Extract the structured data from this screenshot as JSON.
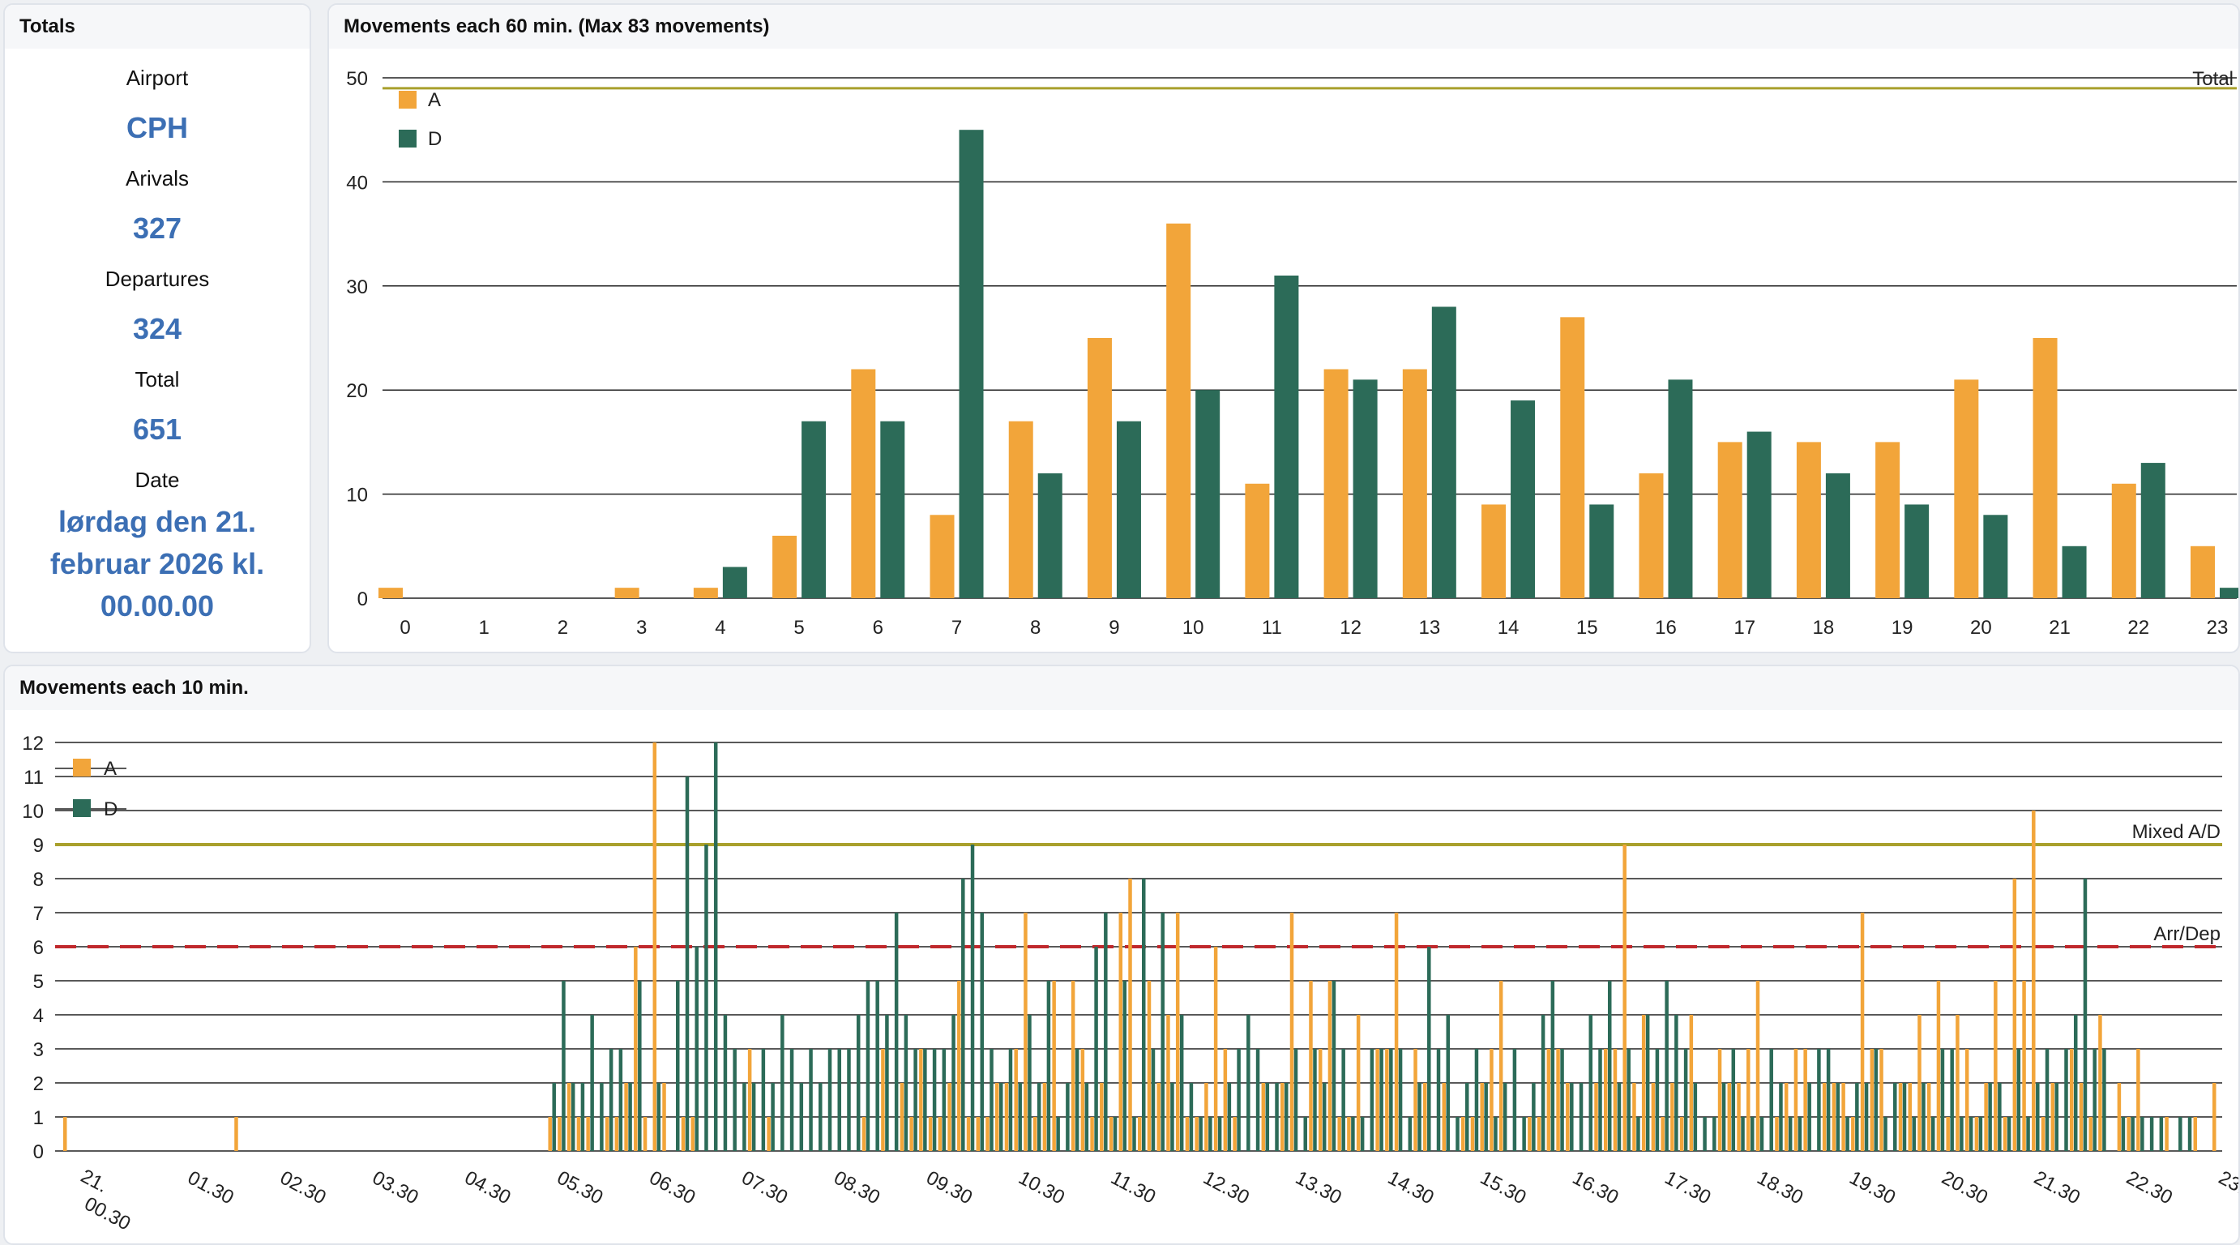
{
  "totals": {
    "title": "Totals",
    "airport_label": "Airport",
    "airport": "CPH",
    "arrivals_label": "Arivals",
    "arrivals": "327",
    "departures_label": "Departures",
    "departures": "324",
    "total_label": "Total",
    "total": "651",
    "date_label": "Date",
    "date": "lørdag den 21. februar 2026 kl. 00.00.00"
  },
  "colors": {
    "arrivals": "#f2a53a",
    "departures": "#2c6b58",
    "limit_line": "#a9a02c",
    "arrdep_line": "#c0282c"
  },
  "hourly": {
    "title": "Movements each 60 min. (Max 83 movements)"
  },
  "tenmin": {
    "title": "Movements each 10 min."
  },
  "chart_data": [
    {
      "type": "bar",
      "title": "Movements each 60 min. (Max 83 movements)",
      "categories": [
        "0",
        "1",
        "2",
        "3",
        "4",
        "5",
        "6",
        "7",
        "8",
        "9",
        "10",
        "11",
        "12",
        "13",
        "14",
        "15",
        "16",
        "17",
        "18",
        "19",
        "20",
        "21",
        "22",
        "23"
      ],
      "series": [
        {
          "name": "A",
          "color": "#f2a53a",
          "values": [
            1,
            0,
            0,
            1,
            1,
            6,
            22,
            8,
            17,
            25,
            36,
            11,
            22,
            22,
            9,
            27,
            12,
            15,
            15,
            15,
            21,
            25,
            11,
            5
          ]
        },
        {
          "name": "D",
          "color": "#2c6b58",
          "values": [
            0,
            0,
            0,
            0,
            3,
            17,
            17,
            45,
            12,
            17,
            20,
            31,
            21,
            28,
            19,
            9,
            21,
            16,
            12,
            9,
            8,
            5,
            13,
            1
          ]
        }
      ],
      "yticks": [
        0,
        10,
        20,
        30,
        40,
        50
      ],
      "ylim": [
        0,
        50
      ],
      "reference_lines": [
        {
          "label": "Total",
          "value": 49
        }
      ],
      "grid": true,
      "legend": "top-left"
    },
    {
      "type": "bar",
      "title": "Movements each 10 min.",
      "xtick_labels": [
        "21. 00.30",
        "01.30",
        "02.30",
        "03.30",
        "04.30",
        "05.30",
        "06.30",
        "07.30",
        "08.30",
        "09.30",
        "10.30",
        "11.30",
        "12.30",
        "13.30",
        "14.30",
        "15.30",
        "16.30",
        "17.30",
        "18.30",
        "19.30",
        "20.30",
        "21.30",
        "22.30",
        "23.30"
      ],
      "series": [
        {
          "name": "A",
          "color": "#f2a53a",
          "values": [
            1,
            0,
            0,
            0,
            0,
            0,
            0,
            0,
            0,
            0,
            0,
            0,
            0,
            0,
            0,
            0,
            0,
            0,
            1,
            0,
            0,
            0,
            0,
            0,
            0,
            0,
            0,
            0,
            0,
            0,
            0,
            0,
            0,
            0,
            0,
            0,
            0,
            0,
            0,
            0,
            0,
            0,
            0,
            0,
            0,
            0,
            0,
            0,
            0,
            0,
            0,
            1,
            1,
            2,
            1,
            1,
            0,
            1,
            1,
            2,
            6,
            1,
            12,
            2,
            0,
            1,
            1,
            0,
            0,
            0,
            0,
            0,
            3,
            0,
            1,
            0,
            0,
            0,
            0,
            0,
            0,
            0,
            0,
            0,
            1,
            0,
            3,
            0,
            2,
            1,
            3,
            1,
            1,
            2,
            5,
            1,
            1,
            1,
            2,
            2,
            3,
            7,
            1,
            2,
            5,
            0,
            5,
            3,
            1,
            2,
            1,
            7,
            8,
            1,
            5,
            2,
            4,
            7,
            1,
            1,
            2,
            6,
            3,
            1,
            0,
            0,
            2,
            0,
            2,
            7,
            0,
            5,
            3,
            5,
            1,
            1,
            4,
            0,
            3,
            3,
            7,
            0,
            3,
            2,
            0,
            2,
            0,
            1,
            1,
            2,
            3,
            5,
            0,
            0,
            1,
            1,
            3,
            3,
            2,
            0,
            0,
            2,
            3,
            3,
            9,
            2,
            4,
            2,
            1,
            2,
            1,
            4,
            0,
            0,
            3,
            2,
            2,
            3,
            5,
            0,
            1,
            2,
            3,
            3,
            0,
            2,
            2,
            2,
            1,
            7,
            3,
            3,
            0,
            2,
            2,
            4,
            2,
            5,
            1,
            4,
            3,
            1,
            2,
            5,
            1,
            8,
            5,
            10,
            1,
            2,
            0,
            3,
            2,
            1,
            4,
            0,
            2,
            1,
            3,
            0,
            0,
            1,
            0,
            0,
            1,
            0,
            2
          ]
        },
        {
          "name": "D",
          "color": "#2c6b58",
          "values": [
            0,
            0,
            0,
            0,
            0,
            0,
            0,
            0,
            0,
            0,
            0,
            0,
            0,
            0,
            0,
            0,
            0,
            0,
            0,
            0,
            0,
            0,
            0,
            0,
            0,
            0,
            0,
            0,
            0,
            0,
            0,
            0,
            0,
            0,
            0,
            0,
            0,
            0,
            0,
            0,
            0,
            0,
            0,
            0,
            0,
            0,
            0,
            0,
            0,
            0,
            0,
            2,
            5,
            2,
            2,
            4,
            2,
            3,
            3,
            2,
            5,
            0,
            2,
            0,
            5,
            11,
            6,
            9,
            12,
            4,
            3,
            2,
            2,
            3,
            2,
            4,
            3,
            2,
            3,
            2,
            3,
            3,
            3,
            4,
            5,
            5,
            4,
            7,
            4,
            3,
            3,
            3,
            3,
            4,
            8,
            9,
            7,
            3,
            2,
            3,
            2,
            4,
            2,
            5,
            1,
            2,
            3,
            2,
            6,
            7,
            1,
            5,
            1,
            8,
            3,
            7,
            2,
            4,
            2,
            1,
            1,
            1,
            2,
            3,
            4,
            3,
            2,
            2,
            2,
            3,
            1,
            3,
            2,
            5,
            3,
            1,
            1,
            3,
            3,
            3,
            3,
            1,
            2,
            6,
            3,
            4,
            1,
            2,
            3,
            2,
            1,
            2,
            3,
            1,
            2,
            4,
            5,
            3,
            2,
            2,
            4,
            3,
            5,
            2,
            3,
            1,
            4,
            3,
            5,
            4,
            3,
            2,
            1,
            1,
            2,
            3,
            1,
            1,
            1,
            3,
            2,
            1,
            1,
            2,
            3,
            3,
            2,
            1,
            2,
            2,
            3,
            1,
            2,
            2,
            1,
            2,
            1,
            3,
            3,
            1,
            1,
            1,
            2,
            2,
            1,
            3,
            1,
            2,
            3,
            2,
            3,
            4,
            8,
            3,
            3,
            0,
            1,
            1,
            1,
            1,
            1,
            0,
            1,
            1
          ]
        }
      ],
      "yticks": [
        0,
        1,
        2,
        3,
        4,
        5,
        6,
        7,
        8,
        9,
        10,
        11,
        12
      ],
      "ylim": [
        0,
        12
      ],
      "reference_lines": [
        {
          "label": "Mixed A/D",
          "value": 9
        },
        {
          "label": "Arr/Dep",
          "value": 6
        }
      ],
      "grid": true,
      "legend": "top-left"
    }
  ]
}
